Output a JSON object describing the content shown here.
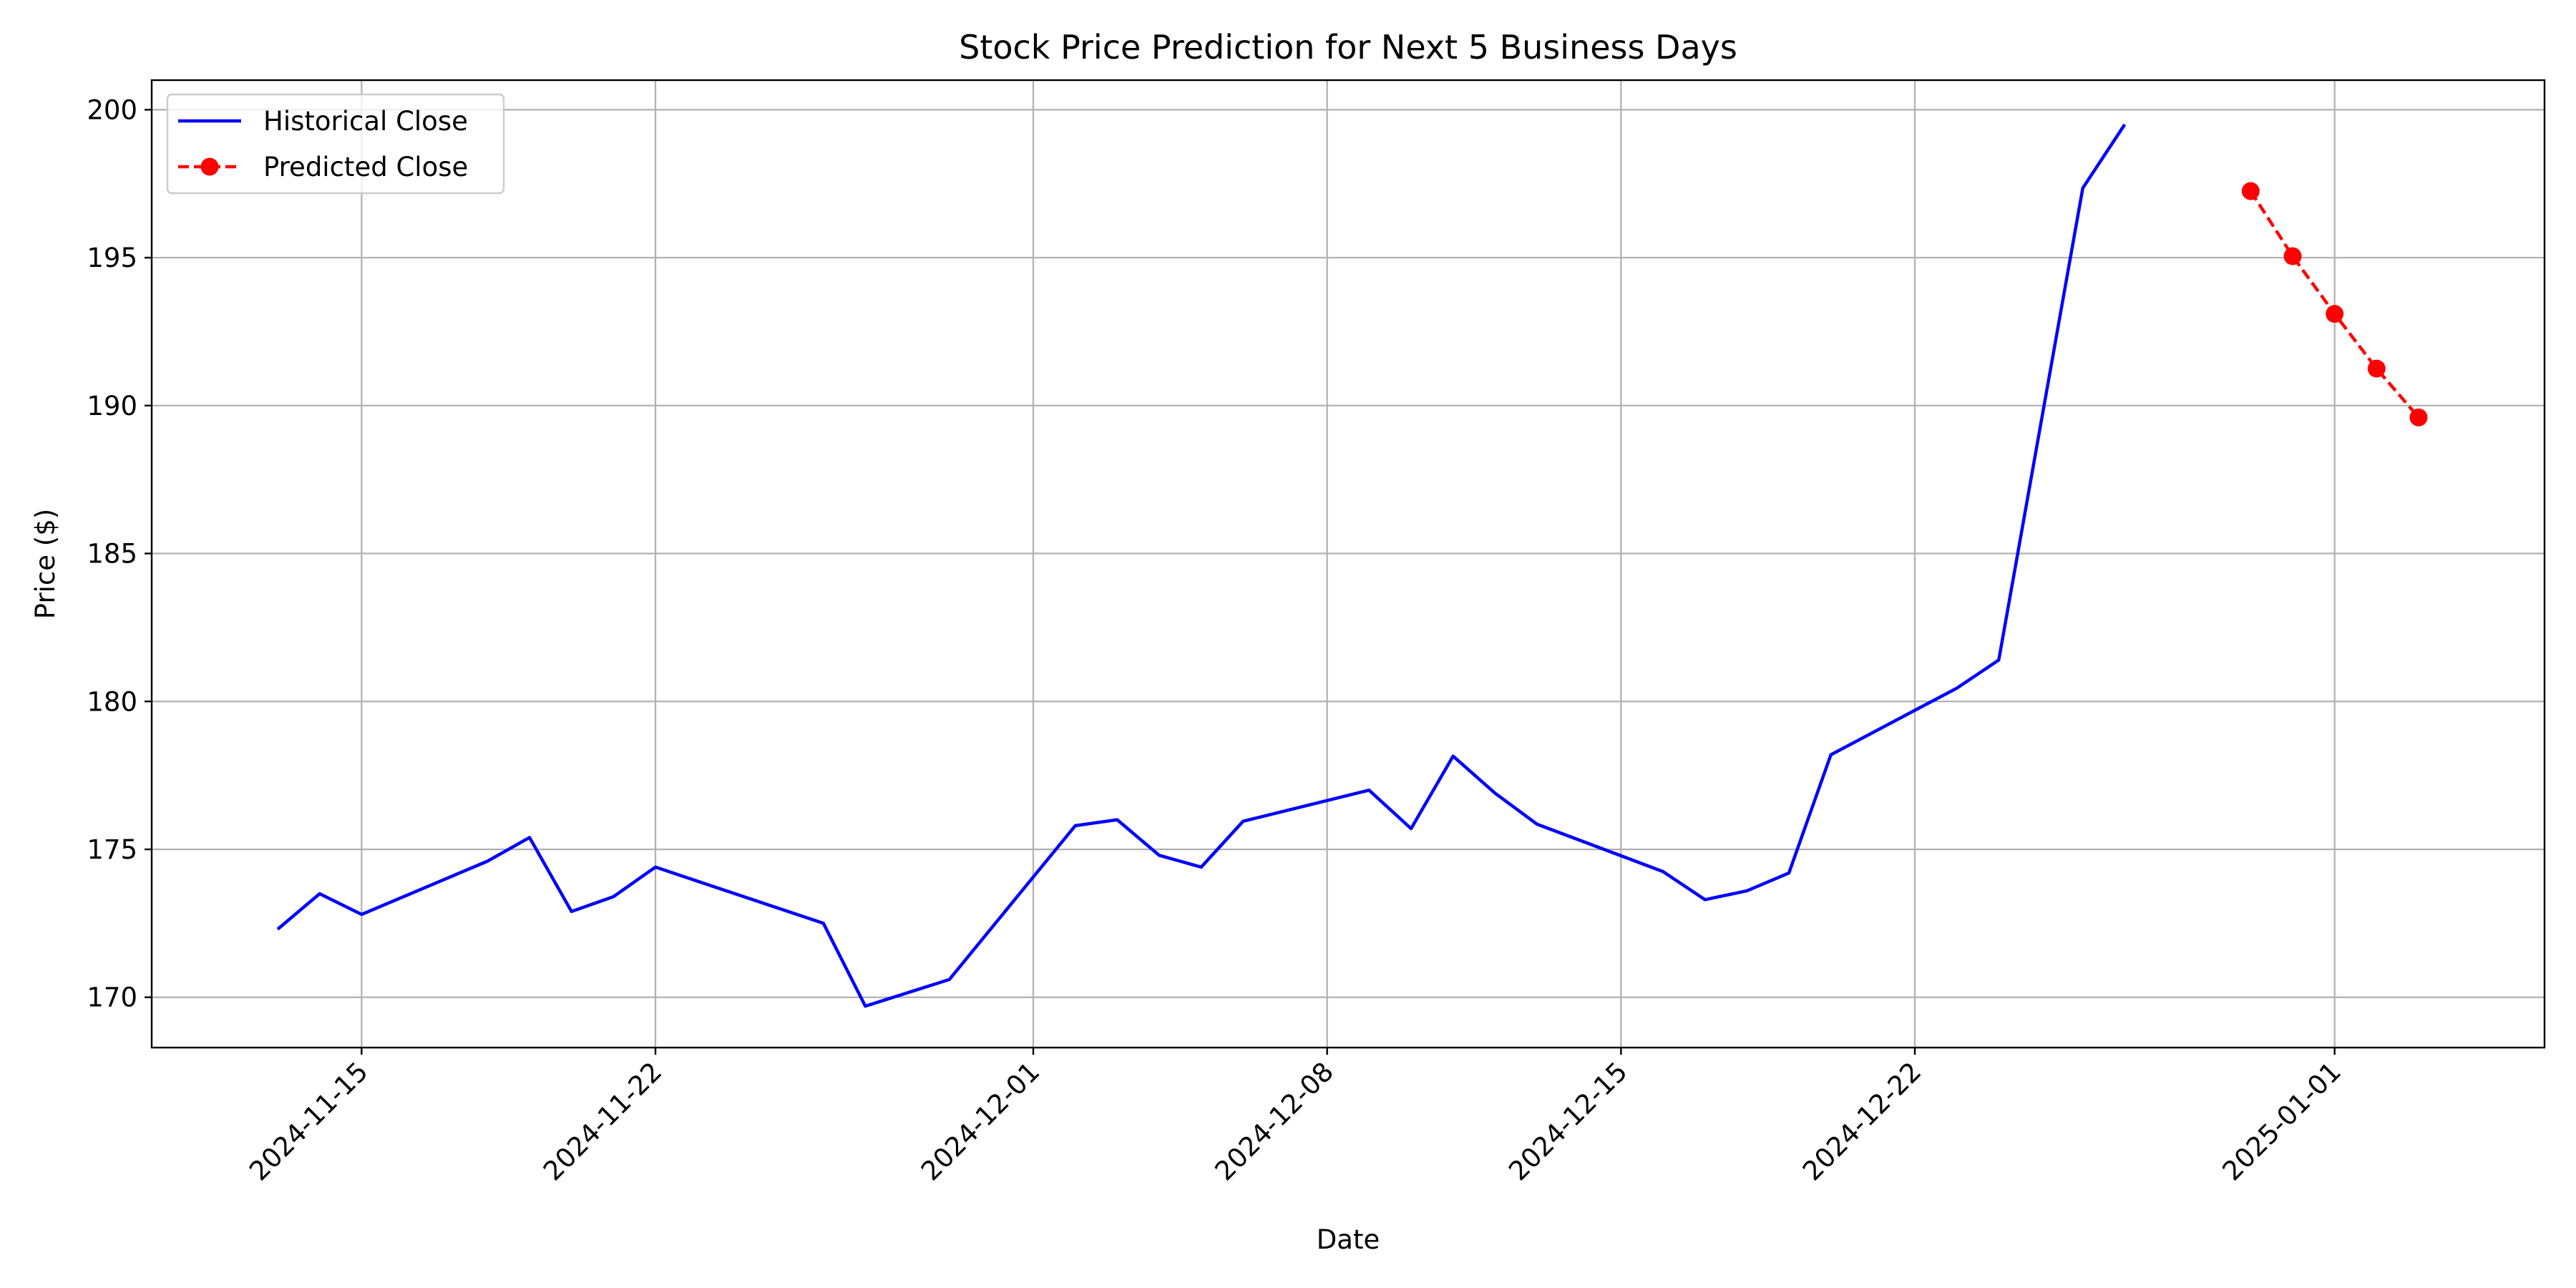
{
  "chart_data": {
    "type": "line",
    "title": "Stock Price Prediction for Next 5 Business Days",
    "xlabel": "Date",
    "ylabel": "Price ($)",
    "x_is_date": true,
    "xlim": [
      "2024-11-10",
      "2025-01-06"
    ],
    "ylim": [
      168.3,
      201.0
    ],
    "grid": true,
    "legend_position": "top-left",
    "x_ticks": [
      "2024-11-15",
      "2024-11-22",
      "2024-12-01",
      "2024-12-08",
      "2024-12-15",
      "2024-12-22",
      "2025-01-01"
    ],
    "y_ticks": [
      170,
      175,
      180,
      185,
      190,
      195,
      200
    ],
    "series": [
      {
        "name": "Historical Close",
        "color": "#0000ff",
        "style": "solid",
        "marker": "none",
        "points": [
          {
            "x": "2024-11-13",
            "y": 172.3
          },
          {
            "x": "2024-11-14",
            "y": 173.5
          },
          {
            "x": "2024-11-15",
            "y": 172.8
          },
          {
            "x": "2024-11-18",
            "y": 174.6
          },
          {
            "x": "2024-11-19",
            "y": 175.4
          },
          {
            "x": "2024-11-20",
            "y": 172.9
          },
          {
            "x": "2024-11-21",
            "y": 173.4
          },
          {
            "x": "2024-11-22",
            "y": 174.4
          },
          {
            "x": "2024-11-26",
            "y": 172.5
          },
          {
            "x": "2024-11-27",
            "y": 169.7
          },
          {
            "x": "2024-11-29",
            "y": 170.6
          },
          {
            "x": "2024-12-02",
            "y": 175.8
          },
          {
            "x": "2024-12-03",
            "y": 176.0
          },
          {
            "x": "2024-12-04",
            "y": 174.8
          },
          {
            "x": "2024-12-05",
            "y": 174.4
          },
          {
            "x": "2024-12-06",
            "y": 175.95
          },
          {
            "x": "2024-12-09",
            "y": 177.0
          },
          {
            "x": "2024-12-10",
            "y": 175.7
          },
          {
            "x": "2024-12-11",
            "y": 178.15
          },
          {
            "x": "2024-12-12",
            "y": 176.9
          },
          {
            "x": "2024-12-13",
            "y": 175.85
          },
          {
            "x": "2024-12-16",
            "y": 174.25
          },
          {
            "x": "2024-12-17",
            "y": 173.3
          },
          {
            "x": "2024-12-18",
            "y": 173.6
          },
          {
            "x": "2024-12-19",
            "y": 174.2
          },
          {
            "x": "2024-12-20",
            "y": 178.2
          },
          {
            "x": "2024-12-23",
            "y": 180.45
          },
          {
            "x": "2024-12-24",
            "y": 181.4
          },
          {
            "x": "2024-12-26",
            "y": 197.35
          },
          {
            "x": "2024-12-27",
            "y": 199.5
          }
        ]
      },
      {
        "name": "Predicted Close",
        "color": "#ff0000",
        "style": "dashed",
        "marker": "circle",
        "points": [
          {
            "x": "2024-12-30",
            "y": 197.25
          },
          {
            "x": "2024-12-31",
            "y": 195.05
          },
          {
            "x": "2025-01-01",
            "y": 193.1
          },
          {
            "x": "2025-01-02",
            "y": 191.25
          },
          {
            "x": "2025-01-03",
            "y": 189.6
          }
        ]
      }
    ]
  }
}
